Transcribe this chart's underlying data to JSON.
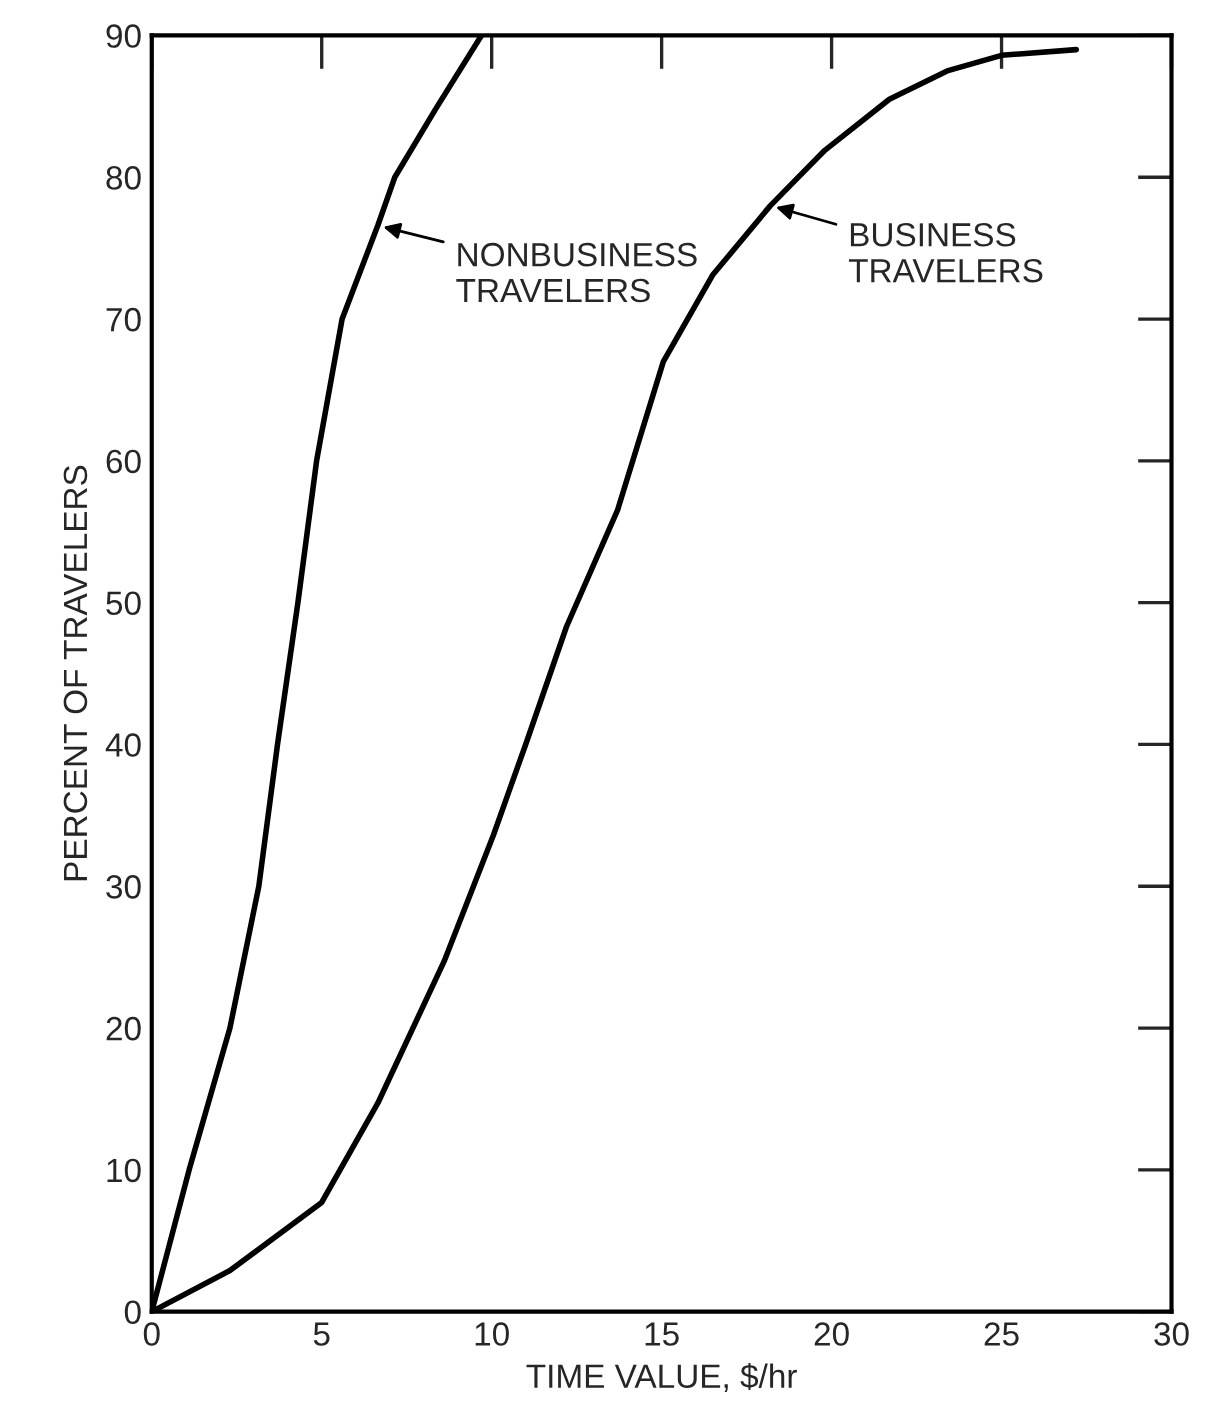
{
  "chart_data": {
    "type": "line",
    "xlabel": "TIME VALUE, $/hr",
    "ylabel": "PERCENT OF TRAVELERS",
    "xlim": [
      0,
      30
    ],
    "ylim": [
      0,
      90
    ],
    "xticks": [
      0,
      5,
      10,
      15,
      20,
      25,
      30
    ],
    "yticks": [
      0,
      10,
      20,
      30,
      40,
      50,
      60,
      70,
      80,
      90
    ],
    "grid": false,
    "legend": false,
    "marker": "none",
    "line_style": "solid",
    "series": [
      {
        "color": "#000000",
        "x": [
          0,
          1.1,
          2.3,
          3.15,
          3.7,
          4.3,
          4.85,
          5.6,
          6.65,
          7.15,
          8.35,
          9.7
        ],
        "values": [
          0,
          10,
          20,
          30,
          40,
          50,
          60,
          70,
          76.6,
          80,
          84.8,
          90
        ]
      },
      {
        "color": "#000000",
        "x": [
          0,
          2.3,
          5,
          6.65,
          8.6,
          10.05,
          11,
          12.2,
          13.7,
          15.05,
          16.5,
          18.2,
          19.8,
          21.7,
          23.4,
          25,
          27.2
        ],
        "values": [
          0,
          2.9,
          7.7,
          14.7,
          24.7,
          33.6,
          40,
          48.3,
          56.5,
          67.0,
          73.1,
          78,
          81.9,
          85.5,
          87.5,
          88.6,
          89
        ]
      }
    ],
    "annotations": [
      {
        "text": "NONBUSINESS\nTRAVELERS",
        "x": 6.65,
        "y": 76.6
      },
      {
        "text": "BUSINESS\nTRAVELERS",
        "x": 18.2,
        "y": 78
      }
    ]
  }
}
